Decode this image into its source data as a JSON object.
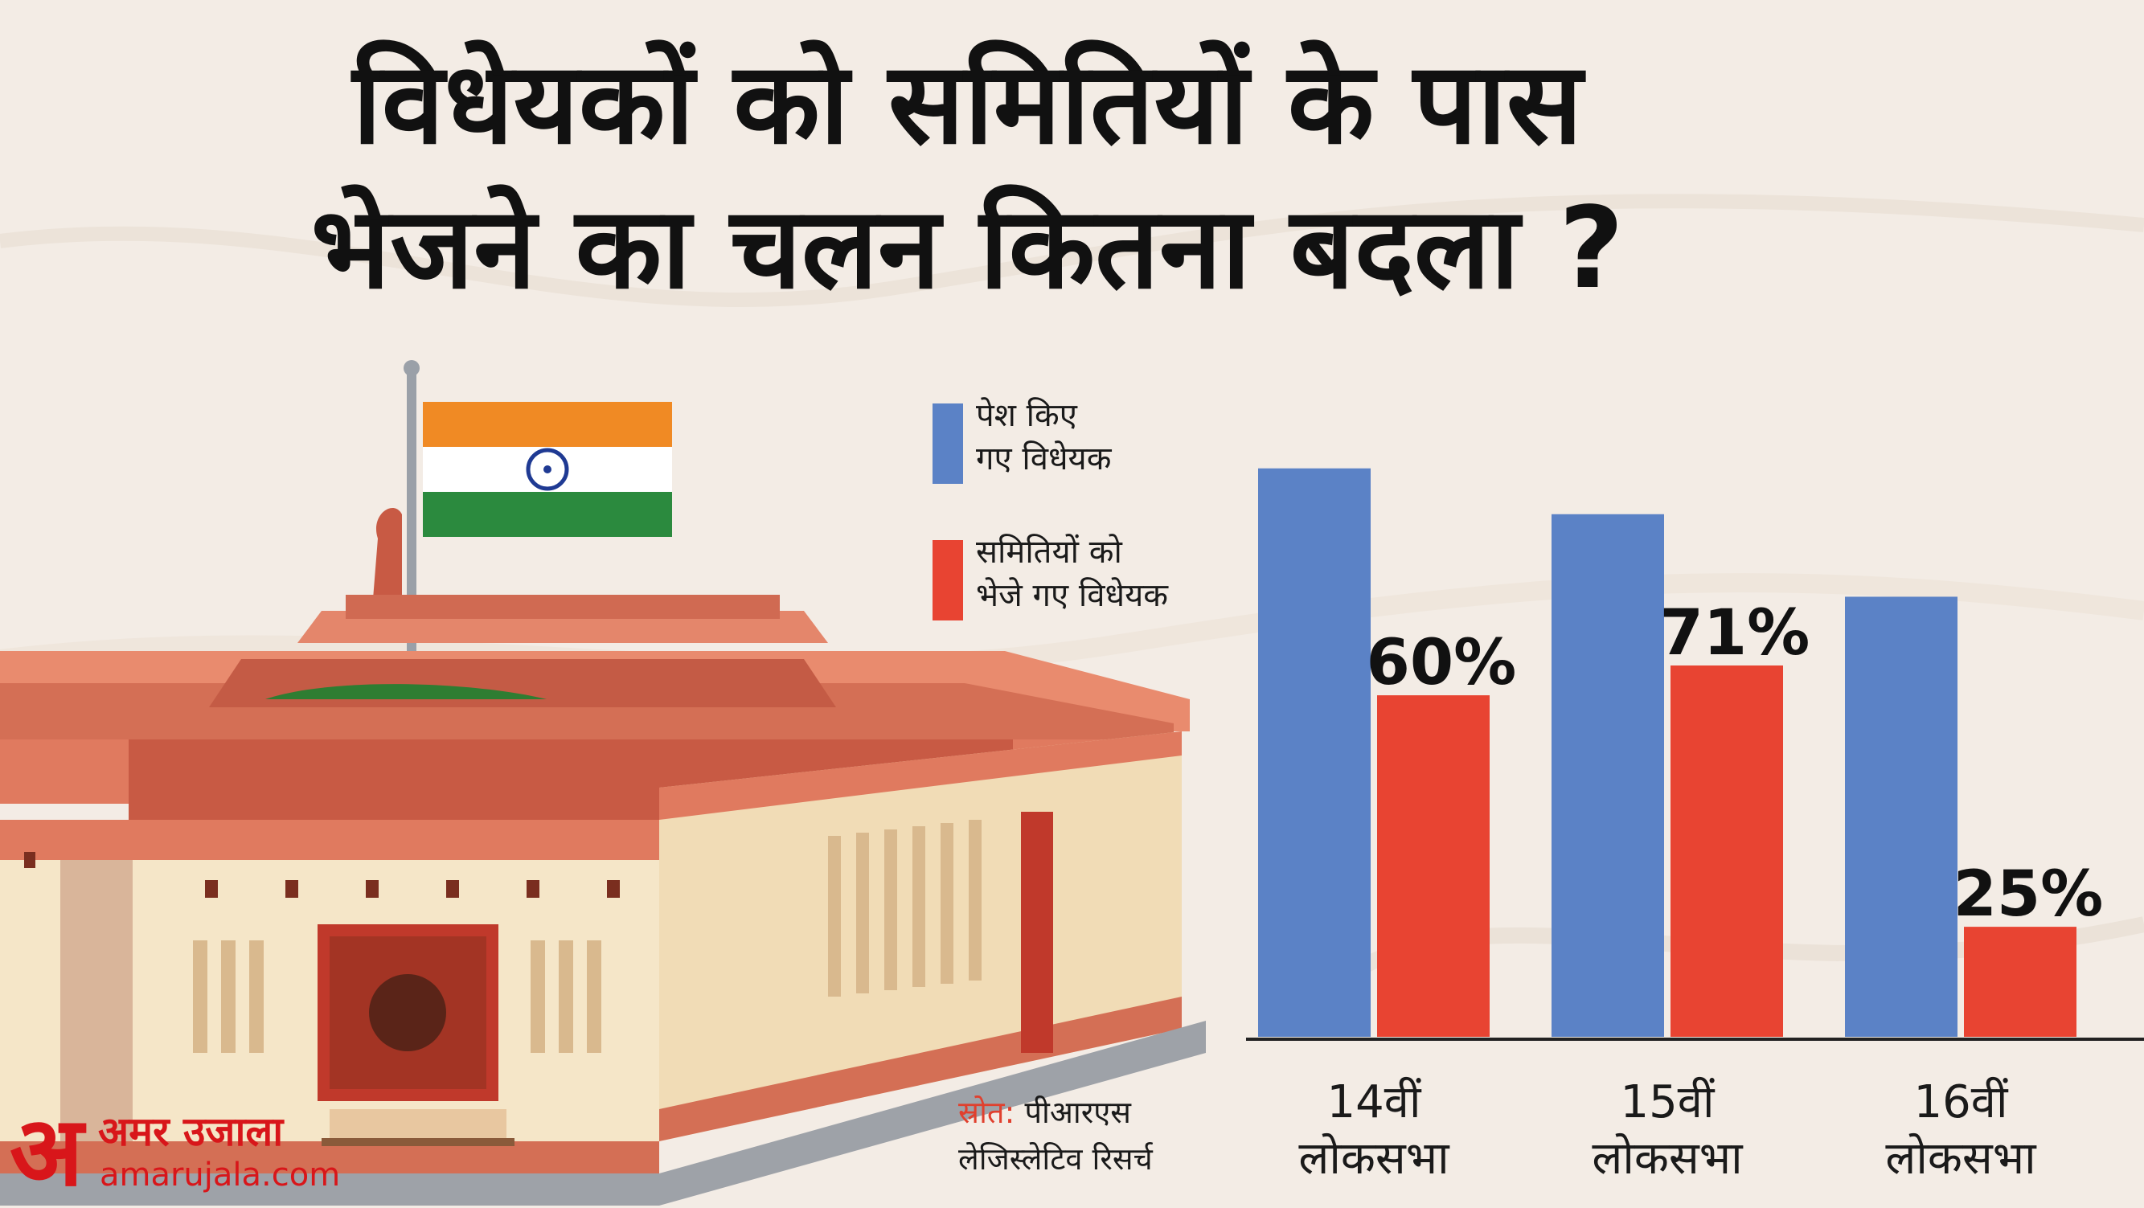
{
  "title": {
    "line1": "विधेयकों को समितियों के पास",
    "line2": "भेजने का चलन कितना बदला ?"
  },
  "legend": {
    "items": [
      {
        "line1": "पेश किए",
        "line2": "गए विधेयक",
        "color": "#5b82c6"
      },
      {
        "line1": "समितियों को",
        "line2": "भेजे गए विधेयक",
        "color": "#e84432"
      }
    ]
  },
  "chart_data": {
    "type": "bar",
    "categories": [
      [
        "14वीं",
        "लोकसभा"
      ],
      [
        "15वीं",
        "लोकसभा"
      ],
      [
        "16वीं",
        "लोकसभा"
      ]
    ],
    "series": [
      {
        "name": "पेश किए गए विधेयक",
        "values": [
          248,
          228,
          192
        ],
        "color": "#5b82c6"
      },
      {
        "name": "समितियों को भेजे गए विधेयक",
        "values": [
          149,
          162,
          48
        ],
        "color": "#e84432"
      }
    ],
    "data_labels": [
      "60%",
      "71%",
      "25%"
    ],
    "legend_position": "top-left",
    "grid": false,
    "ylim": [
      0,
      270
    ]
  },
  "source": {
    "label": "स्रोत:",
    "line1": "पीआरएस",
    "line2": "लेजिस्लेटिव रिसर्च"
  },
  "brand": {
    "mark": "अ",
    "name": "अमर उजाला",
    "url": "amarujala.com",
    "color": "#d8161a"
  },
  "colors": {
    "background": "#f3ece5",
    "bar_blue": "#5b82c6",
    "bar_red": "#e84432",
    "building": "#e07a5f",
    "building_light": "#f5e6c8"
  }
}
